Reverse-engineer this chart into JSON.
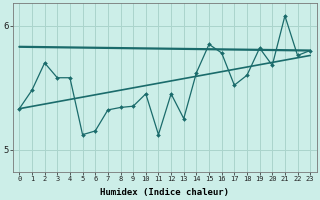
{
  "xlabel": "Humidex (Indice chaleur)",
  "background_color": "#cceee8",
  "line_color": "#1a6b6b",
  "grid_color": "#aad4cc",
  "xlim": [
    -0.5,
    23.5
  ],
  "ylim": [
    4.82,
    6.18
  ],
  "yticks": [
    5,
    6
  ],
  "xticks": [
    0,
    1,
    2,
    3,
    4,
    5,
    6,
    7,
    8,
    9,
    10,
    11,
    12,
    13,
    14,
    15,
    16,
    17,
    18,
    19,
    20,
    21,
    22,
    23
  ],
  "line1_x": [
    0,
    23
  ],
  "line1_y": [
    5.83,
    5.8
  ],
  "line2_x": [
    0,
    23
  ],
  "line2_y": [
    5.33,
    5.76
  ],
  "jagged_x": [
    0,
    1,
    2,
    3,
    4,
    5,
    6,
    7,
    8,
    9,
    10,
    11,
    12,
    13,
    14,
    15,
    16,
    17,
    18,
    19,
    20,
    21,
    22,
    23
  ],
  "jagged_y": [
    5.33,
    5.48,
    5.7,
    5.58,
    5.58,
    5.12,
    5.15,
    5.32,
    5.34,
    5.35,
    5.45,
    5.12,
    5.45,
    5.25,
    5.62,
    5.85,
    5.78,
    5.52,
    5.6,
    5.82,
    5.68,
    6.08,
    5.76,
    5.8
  ]
}
